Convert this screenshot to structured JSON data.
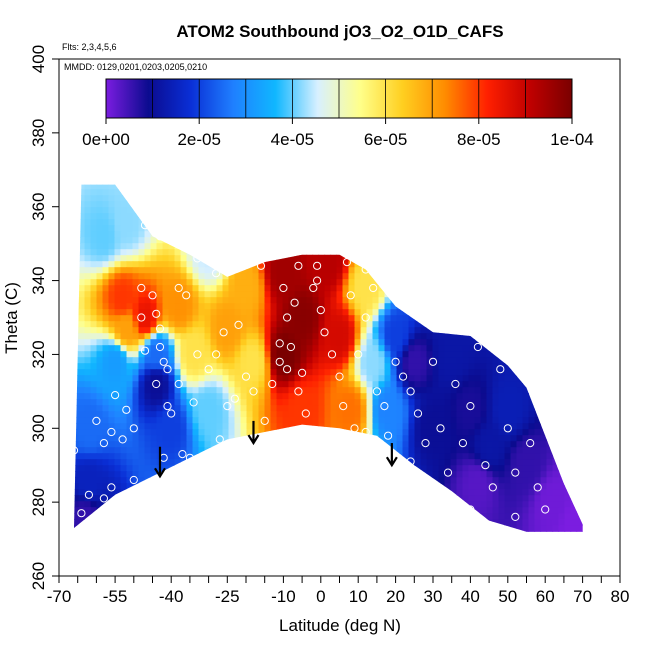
{
  "chart_data": {
    "type": "heatmap",
    "title": "ATOM2 Southbound jO3_O2_O1D_CAFS",
    "subtitle_flights": "Flts: 2,3,4,5,6",
    "subtitle_dates": "MMDD: 0129,0201,0203,0205,0210",
    "xlabel": "Latitude (deg N)",
    "ylabel": "Theta (C)",
    "xlim": [
      -70,
      80
    ],
    "ylim": [
      260,
      400
    ],
    "x_ticks": [
      -70,
      -55,
      -40,
      -25,
      -10,
      0,
      10,
      20,
      30,
      40,
      50,
      60,
      70,
      80
    ],
    "x_tick_labels": [
      "-70",
      "-55",
      "-40",
      "-25",
      "-10",
      "0",
      "10",
      "20",
      "30",
      "40",
      "50",
      "60",
      "70",
      "80"
    ],
    "x_minor_ticks": [
      -65,
      -60,
      -50,
      -45,
      -35,
      -30,
      -20,
      -15,
      -5,
      5,
      15,
      25,
      35,
      45,
      55,
      65,
      75
    ],
    "y_ticks": [
      260,
      280,
      300,
      320,
      340,
      360,
      380,
      400
    ],
    "y_tick_labels": [
      "260",
      "280",
      "300",
      "320",
      "340",
      "360",
      "380",
      "400"
    ],
    "colorbar": {
      "min": 0,
      "max": 0.0001,
      "ticks": [
        0,
        2e-05,
        4e-05,
        6e-05,
        8e-05,
        0.0001
      ],
      "tick_labels": [
        "0e+00",
        "2e-05",
        "4e-05",
        "6e-05",
        "8e-05",
        "1e-04"
      ],
      "stops": [
        "#7b1de0",
        "#0b0b8f",
        "#0a2fd6",
        "#1f7fff",
        "#10b7ff",
        "#d8f0ff",
        "#ffff8a",
        "#ffcf20",
        "#ff8c00",
        "#ff2000",
        "#c00000",
        "#7a0000"
      ]
    },
    "domain_top": [
      [
        -64,
        366
      ],
      [
        -55,
        366
      ],
      [
        -45,
        352
      ],
      [
        -35,
        347
      ],
      [
        -25,
        341
      ],
      [
        -15,
        345
      ],
      [
        -5,
        347
      ],
      [
        5,
        347
      ],
      [
        12,
        343
      ],
      [
        20,
        333
      ],
      [
        30,
        326
      ],
      [
        40,
        325
      ],
      [
        50,
        317
      ],
      [
        55,
        311
      ],
      [
        60,
        298
      ],
      [
        65,
        285
      ],
      [
        70,
        274
      ]
    ],
    "domain_bottom": [
      [
        70,
        272
      ],
      [
        55,
        272
      ],
      [
        45,
        275
      ],
      [
        35,
        283
      ],
      [
        25,
        290
      ],
      [
        15,
        298
      ],
      [
        5,
        300
      ],
      [
        -5,
        301
      ],
      [
        -15,
        299
      ],
      [
        -25,
        297
      ],
      [
        -35,
        292
      ],
      [
        -45,
        287
      ],
      [
        -55,
        282
      ],
      [
        -66,
        273
      ]
    ],
    "arrows": [
      {
        "lat": -43,
        "theta_top": 295,
        "theta_tip": 287
      },
      {
        "lat": -18,
        "theta_top": 302,
        "theta_tip": 296
      },
      {
        "lat": 19,
        "theta_top": 296,
        "theta_tip": 290
      }
    ],
    "field_anchors": [
      {
        "lat": -62,
        "theta": 300,
        "value": 2.5e-05
      },
      {
        "lat": -62,
        "theta": 285,
        "value": 1.5e-05
      },
      {
        "lat": -63,
        "theta": 276,
        "value": 6e-06
      },
      {
        "lat": -55,
        "theta": 318,
        "value": 3.2e-05
      },
      {
        "lat": -58,
        "theta": 352,
        "value": 4e-05
      },
      {
        "lat": -52,
        "theta": 355,
        "value": 4.2e-05
      },
      {
        "lat": -53,
        "theta": 335,
        "value": 8e-05
      },
      {
        "lat": -52,
        "theta": 327,
        "value": 7e-05
      },
      {
        "lat": -47,
        "theta": 330,
        "value": 8.5e-05
      },
      {
        "lat": -44,
        "theta": 312,
        "value": 1e-05
      },
      {
        "lat": -44,
        "theta": 320,
        "value": 2.5e-05
      },
      {
        "lat": -40,
        "theta": 300,
        "value": 2e-05
      },
      {
        "lat": -38,
        "theta": 333,
        "value": 7.2e-05
      },
      {
        "lat": -34,
        "theta": 320,
        "value": 6e-05
      },
      {
        "lat": -30,
        "theta": 305,
        "value": 4e-05
      },
      {
        "lat": -30,
        "theta": 347,
        "value": 4.5e-05
      },
      {
        "lat": -25,
        "theta": 327,
        "value": 7e-05
      },
      {
        "lat": -20,
        "theta": 338,
        "value": 6.8e-05
      },
      {
        "lat": -18,
        "theta": 318,
        "value": 6e-05
      },
      {
        "lat": -10,
        "theta": 342,
        "value": 9.5e-05
      },
      {
        "lat": -10,
        "theta": 320,
        "value": 0.0001
      },
      {
        "lat": -5,
        "theta": 330,
        "value": 9.8e-05
      },
      {
        "lat": -5,
        "theta": 305,
        "value": 8e-05
      },
      {
        "lat": 2,
        "theta": 345,
        "value": 9.2e-05
      },
      {
        "lat": 5,
        "theta": 325,
        "value": 8.8e-05
      },
      {
        "lat": 8,
        "theta": 305,
        "value": 7.5e-05
      },
      {
        "lat": 12,
        "theta": 338,
        "value": 6e-05
      },
      {
        "lat": 14,
        "theta": 318,
        "value": 4.2e-05
      },
      {
        "lat": 18,
        "theta": 305,
        "value": 2.8e-05
      },
      {
        "lat": 20,
        "theta": 325,
        "value": 2e-05
      },
      {
        "lat": 25,
        "theta": 318,
        "value": 6e-06
      },
      {
        "lat": 30,
        "theta": 300,
        "value": 1e-05
      },
      {
        "lat": 35,
        "theta": 320,
        "value": 1.2e-05
      },
      {
        "lat": 40,
        "theta": 305,
        "value": 8e-06
      },
      {
        "lat": 45,
        "theta": 295,
        "value": 1.2e-05
      },
      {
        "lat": 42,
        "theta": 285,
        "value": 3e-06
      },
      {
        "lat": 50,
        "theta": 305,
        "value": 1.4e-05
      },
      {
        "lat": 55,
        "theta": 290,
        "value": 6e-06
      },
      {
        "lat": 62,
        "theta": 280,
        "value": 1e-06
      },
      {
        "lat": 68,
        "theta": 274,
        "value": 0.0
      }
    ],
    "observations": [
      [
        -66,
        294
      ],
      [
        -67,
        288
      ],
      [
        -58,
        296
      ],
      [
        -62,
        282
      ],
      [
        -56,
        284
      ],
      [
        -60,
        302
      ],
      [
        -56,
        299
      ],
      [
        -53,
        297
      ],
      [
        -50,
        300
      ],
      [
        -55,
        309
      ],
      [
        -52,
        305
      ],
      [
        -48,
        330
      ],
      [
        -45,
        336
      ],
      [
        -44,
        331
      ],
      [
        -43,
        327
      ],
      [
        -43,
        322
      ],
      [
        -42,
        318
      ],
      [
        -41,
        316
      ],
      [
        -41,
        306
      ],
      [
        -40,
        304
      ],
      [
        -42,
        292
      ],
      [
        -37,
        293
      ],
      [
        -33,
        320
      ],
      [
        -30,
        316
      ],
      [
        -28,
        320
      ],
      [
        -26,
        326
      ],
      [
        -25,
        306
      ],
      [
        -23,
        308
      ],
      [
        -20,
        314
      ],
      [
        -18,
        310
      ],
      [
        -15,
        302
      ],
      [
        -13,
        312
      ],
      [
        -11,
        318
      ],
      [
        -9,
        330
      ],
      [
        -8,
        322
      ],
      [
        -7,
        334
      ],
      [
        -6,
        310
      ],
      [
        -5,
        315
      ],
      [
        -4,
        304
      ],
      [
        -2,
        338
      ],
      [
        0,
        332
      ],
      [
        1,
        326
      ],
      [
        3,
        320
      ],
      [
        5,
        314
      ],
      [
        6,
        306
      ],
      [
        7,
        345
      ],
      [
        8,
        336
      ],
      [
        9,
        300
      ],
      [
        10,
        320
      ],
      [
        12,
        330
      ],
      [
        14,
        338
      ],
      [
        15,
        310
      ],
      [
        17,
        306
      ],
      [
        18,
        298
      ],
      [
        20,
        318
      ],
      [
        22,
        314
      ],
      [
        24,
        310
      ],
      [
        26,
        304
      ],
      [
        28,
        296
      ],
      [
        30,
        318
      ],
      [
        32,
        300
      ],
      [
        34,
        288
      ],
      [
        36,
        312
      ],
      [
        38,
        296
      ],
      [
        40,
        306
      ],
      [
        42,
        322
      ],
      [
        44,
        290
      ],
      [
        46,
        284
      ],
      [
        48,
        316
      ],
      [
        50,
        300
      ],
      [
        52,
        288
      ],
      [
        54,
        314
      ],
      [
        56,
        296
      ],
      [
        58,
        284
      ],
      [
        60,
        278
      ],
      [
        64,
        300
      ],
      [
        -58,
        281
      ],
      [
        -64,
        277
      ],
      [
        -50,
        286
      ],
      [
        -35,
        292
      ],
      [
        -27,
        297
      ],
      [
        -10,
        297
      ],
      [
        2,
        298
      ],
      [
        12,
        299
      ],
      [
        24,
        291
      ],
      [
        40,
        278
      ],
      [
        52,
        276
      ],
      [
        -47,
        355
      ],
      [
        -43,
        352
      ],
      [
        -33,
        346
      ],
      [
        -21,
        348
      ],
      [
        -6,
        344
      ],
      [
        -1,
        344
      ],
      [
        12,
        343
      ],
      [
        -48,
        338
      ],
      [
        -38,
        338
      ],
      [
        -28,
        342
      ],
      [
        -16,
        344
      ],
      [
        -10,
        338
      ],
      [
        -1,
        340
      ],
      [
        -11,
        323
      ],
      [
        -9,
        316
      ],
      [
        -47,
        321
      ],
      [
        -44,
        312
      ],
      [
        -38,
        312
      ],
      [
        -34,
        307
      ],
      [
        -22,
        328
      ],
      [
        -36,
        336
      ]
    ]
  }
}
